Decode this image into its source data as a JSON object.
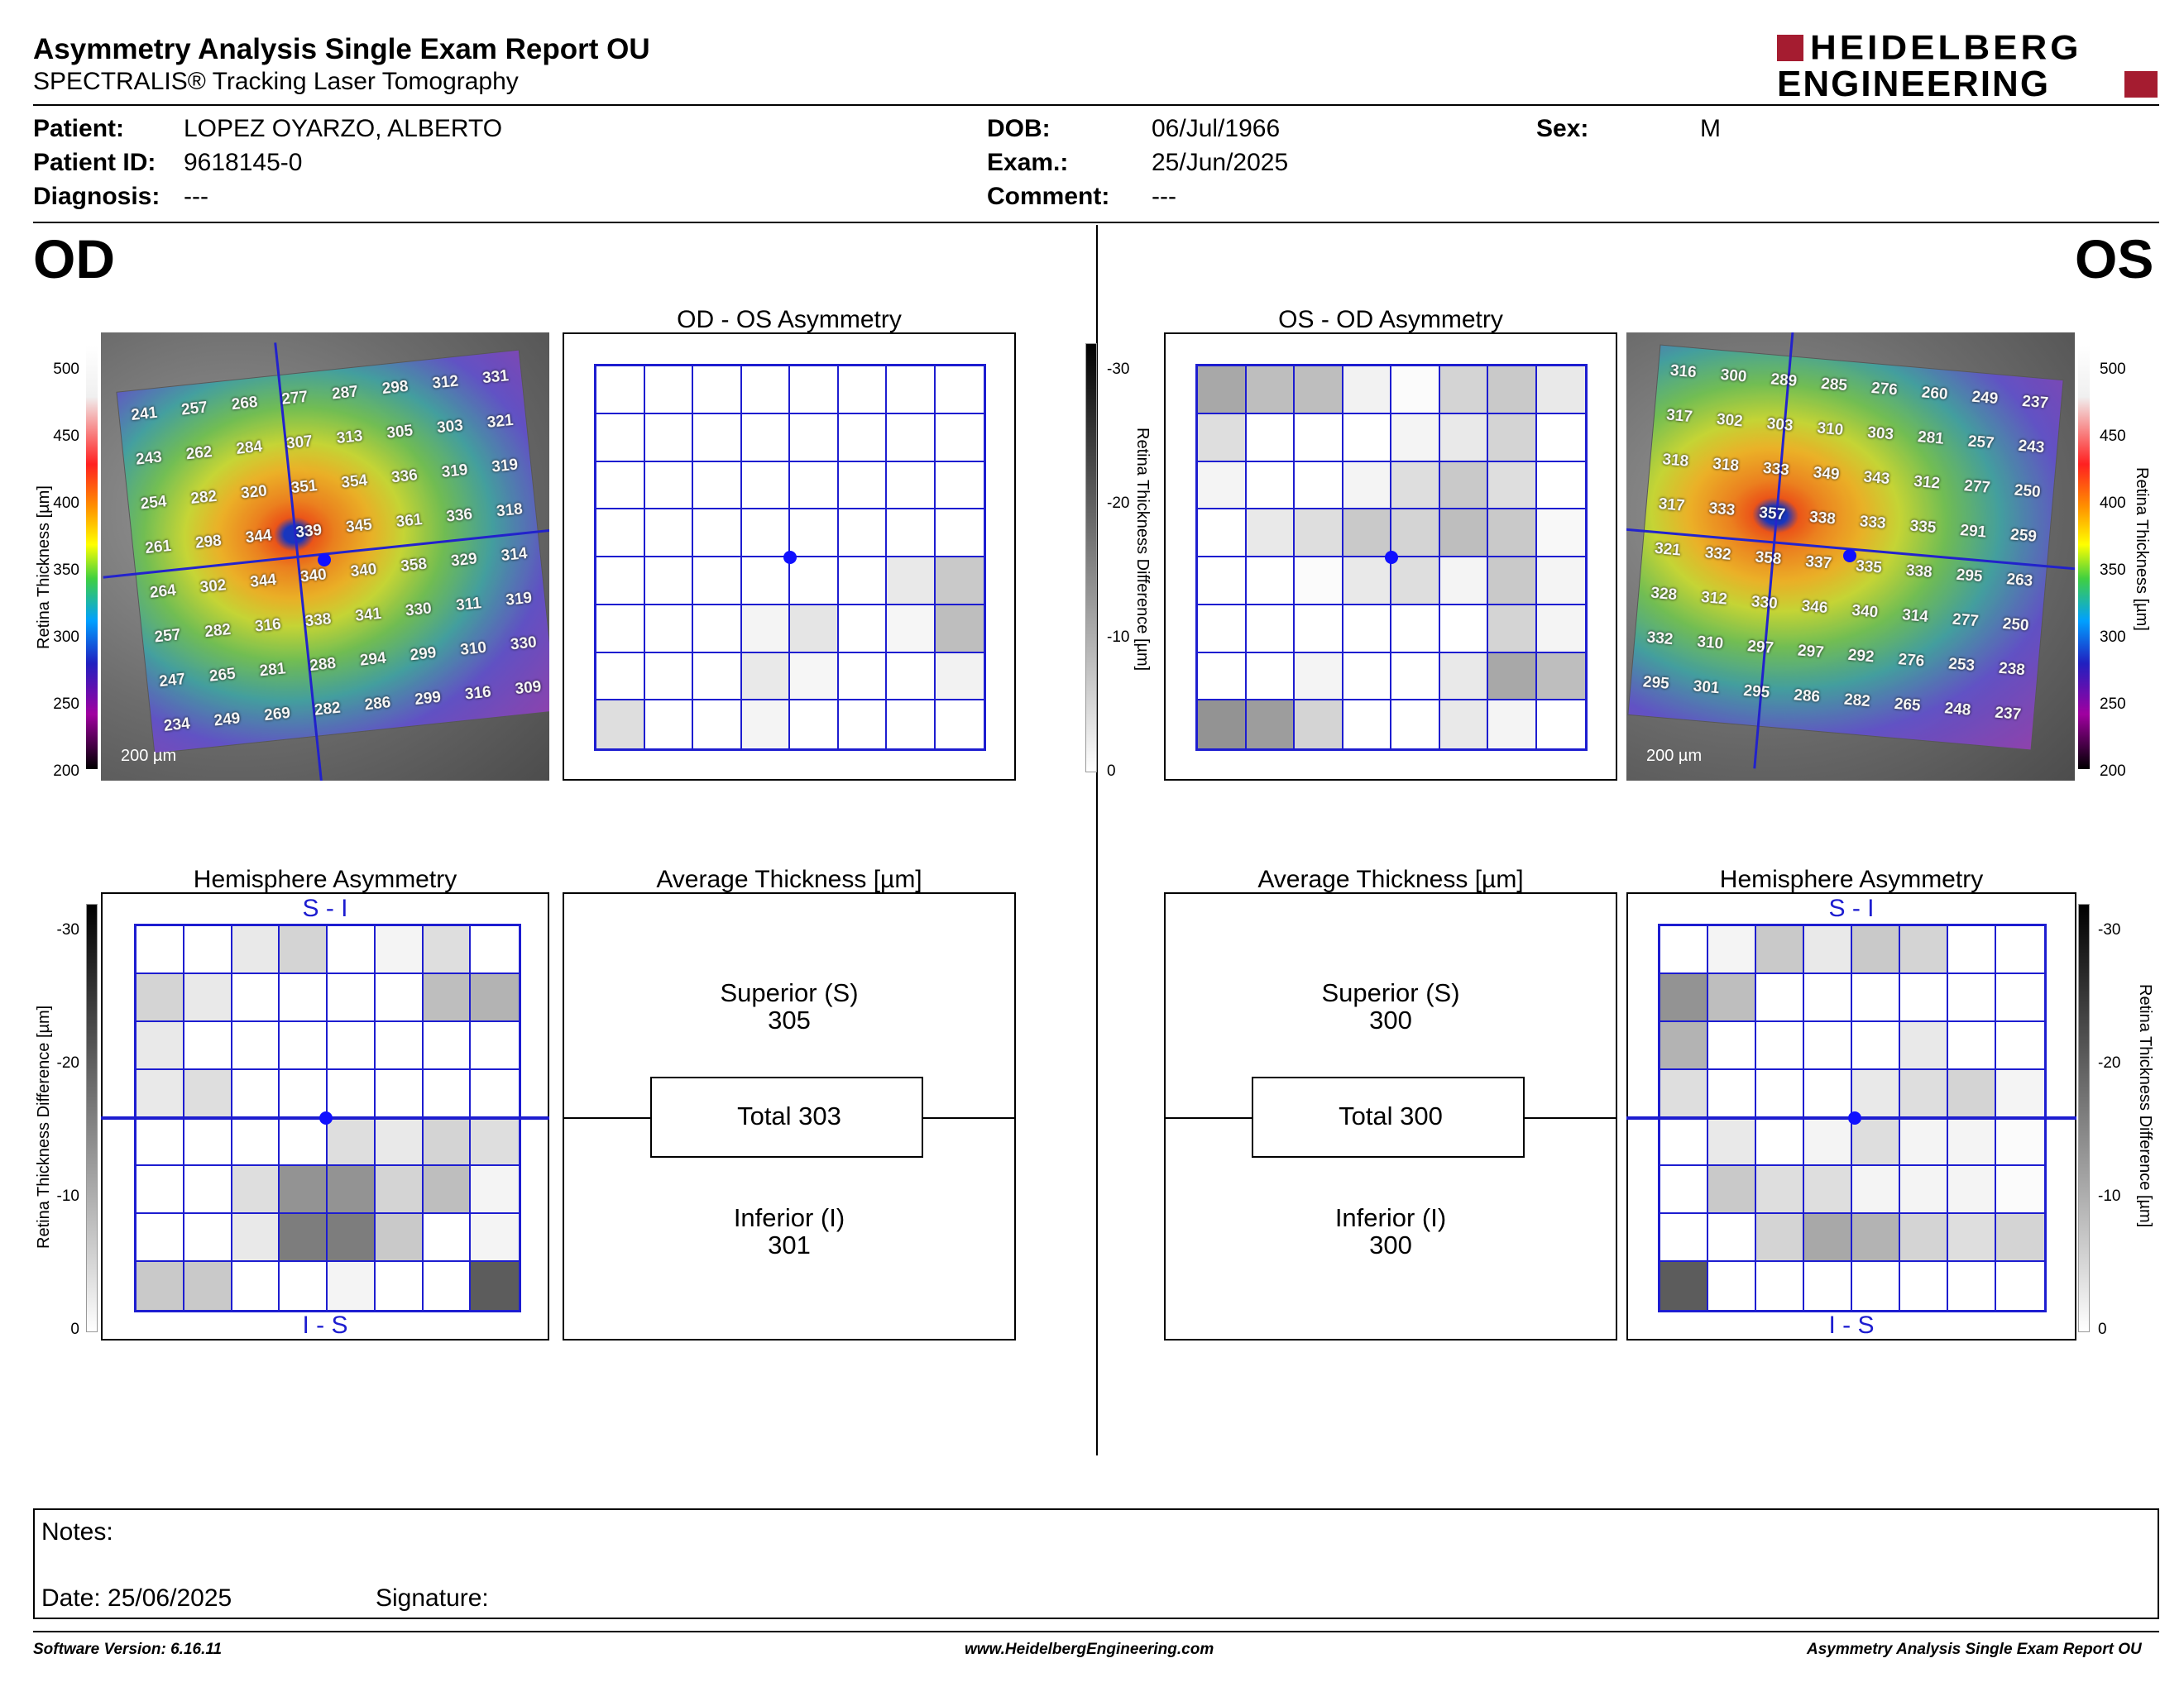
{
  "header": {
    "title": "Asymmetry Analysis Single Exam Report OU",
    "subtitle": "SPECTRALIS® Tracking Laser Tomography",
    "logo_line1": "HEIDELBERG",
    "logo_line2": "ENGINEERING"
  },
  "patient": {
    "name_label": "Patient:",
    "name": "LOPEZ OYARZO, ALBERTO",
    "id_label": "Patient ID:",
    "id": "9618145-0",
    "diagnosis_label": "Diagnosis:",
    "diagnosis": "---",
    "dob_label": "DOB:",
    "dob": "06/Jul/1966",
    "exam_label": "Exam.:",
    "exam": "25/Jun/2025",
    "comment_label": "Comment:",
    "comment": "---",
    "sex_label": "Sex:",
    "sex": "M"
  },
  "eyes": {
    "od": "OD",
    "os": "OS"
  },
  "panels": {
    "od_os_title": "OD - OS Asymmetry",
    "os_od_title": "OS - OD Asymmetry",
    "hemi_title": "Hemisphere Asymmetry",
    "avg_title": "Average Thickness [µm]",
    "si": "S - I",
    "is": "I - S"
  },
  "thickness_axis": {
    "label": "Retina  Thickness [µm]",
    "ticks": [
      "500",
      "450",
      "400",
      "350",
      "300",
      "250",
      "200"
    ]
  },
  "diff_axis": {
    "label": "Retina Thickness Difference [µm]",
    "ticks": [
      "-30",
      "-20",
      "-10",
      "0"
    ]
  },
  "scale_label": "200 µm",
  "od_map": [
    [
      241,
      257,
      268,
      277,
      287,
      298,
      312,
      331
    ],
    [
      243,
      262,
      284,
      307,
      313,
      305,
      303,
      321
    ],
    [
      254,
      282,
      320,
      351,
      354,
      336,
      319,
      319
    ],
    [
      261,
      298,
      344,
      339,
      345,
      361,
      336,
      318
    ],
    [
      264,
      302,
      344,
      340,
      340,
      358,
      329,
      314
    ],
    [
      257,
      282,
      316,
      338,
      341,
      330,
      311,
      319
    ],
    [
      247,
      265,
      281,
      288,
      294,
      299,
      310,
      330
    ],
    [
      234,
      249,
      269,
      282,
      286,
      299,
      316,
      309
    ]
  ],
  "os_map": [
    [
      316,
      300,
      289,
      285,
      276,
      260,
      249,
      237
    ],
    [
      317,
      302,
      303,
      310,
      303,
      281,
      257,
      243
    ],
    [
      318,
      318,
      333,
      349,
      343,
      312,
      277,
      250
    ],
    [
      317,
      333,
      357,
      338,
      333,
      335,
      291,
      259
    ],
    [
      321,
      332,
      358,
      337,
      335,
      338,
      295,
      263
    ],
    [
      328,
      312,
      330,
      346,
      340,
      314,
      277,
      250
    ],
    [
      332,
      310,
      297,
      297,
      292,
      276,
      253,
      238
    ],
    [
      295,
      301,
      295,
      286,
      282,
      265,
      248,
      237
    ]
  ],
  "od_os_asym": [
    [
      0,
      0,
      0,
      0,
      0,
      0,
      0,
      0
    ],
    [
      0,
      0,
      0,
      0,
      0,
      0,
      0,
      0
    ],
    [
      0,
      0,
      0,
      0,
      0,
      0,
      0,
      0
    ],
    [
      0,
      0,
      0,
      0,
      0,
      0,
      0,
      0
    ],
    [
      0,
      0,
      0,
      0,
      0,
      0,
      0.1,
      0.25
    ],
    [
      0,
      0,
      0,
      0.05,
      0.12,
      0,
      0.04,
      0.3
    ],
    [
      0,
      0,
      0,
      0.1,
      0.04,
      0,
      0,
      0.06
    ],
    [
      0.15,
      0,
      0,
      0.05,
      0,
      0,
      0,
      0
    ]
  ],
  "os_od_asym": [
    [
      0.4,
      0.3,
      0.3,
      0.06,
      0.02,
      0.2,
      0.25,
      0.1
    ],
    [
      0.15,
      0,
      0,
      0,
      0.05,
      0.1,
      0.2,
      0
    ],
    [
      0.05,
      0,
      0,
      0.05,
      0.15,
      0.25,
      0.15,
      0
    ],
    [
      0,
      0.1,
      0.15,
      0.25,
      0.2,
      0.3,
      0.25,
      0.03
    ],
    [
      0,
      0,
      0.02,
      0.1,
      0.15,
      0.05,
      0.25,
      0.05
    ],
    [
      0,
      0,
      0,
      0,
      0,
      0,
      0.2,
      0.05
    ],
    [
      0,
      0,
      0.05,
      0,
      0,
      0.1,
      0.4,
      0.3
    ],
    [
      0.5,
      0.45,
      0.2,
      0,
      0,
      0.1,
      0.05,
      0
    ]
  ],
  "od_hemi": [
    [
      0,
      0,
      0.1,
      0.2,
      0,
      0.05,
      0.15,
      0
    ],
    [
      0.2,
      0.1,
      0,
      0,
      0,
      0,
      0.3,
      0.35
    ],
    [
      0.1,
      0,
      0,
      0,
      0,
      0,
      0,
      0
    ],
    [
      0.1,
      0.15,
      0,
      0,
      0,
      0,
      0,
      0
    ],
    [
      0,
      0,
      0,
      0,
      0.15,
      0.1,
      0.2,
      0.15
    ],
    [
      0,
      0,
      0.15,
      0.5,
      0.5,
      0.2,
      0.3,
      0.05
    ],
    [
      0,
      0,
      0.1,
      0.6,
      0.6,
      0.25,
      0,
      0.05
    ],
    [
      0.25,
      0.25,
      0,
      0,
      0.05,
      0,
      0,
      0.75
    ]
  ],
  "os_hemi": [
    [
      0,
      0.05,
      0.25,
      0.1,
      0.25,
      0.2,
      0,
      0
    ],
    [
      0.5,
      0.3,
      0,
      0,
      0,
      0,
      0,
      0
    ],
    [
      0.35,
      0,
      0,
      0,
      0,
      0.1,
      0,
      0
    ],
    [
      0.15,
      0,
      0,
      0,
      0.1,
      0.15,
      0.2,
      0.05
    ],
    [
      0,
      0.1,
      0,
      0.05,
      0.15,
      0.05,
      0.05,
      0.02
    ],
    [
      0,
      0.25,
      0.15,
      0.15,
      0.05,
      0.05,
      0.05,
      0.02
    ],
    [
      0,
      0,
      0.2,
      0.4,
      0.35,
      0.2,
      0.15,
      0.2
    ],
    [
      0.75,
      0,
      0,
      0,
      0,
      0,
      0,
      0
    ]
  ],
  "od_avg": {
    "superior_label": "Superior (S)",
    "superior": "305",
    "total": "Total 303",
    "inferior_label": "Inferior (I)",
    "inferior": "301"
  },
  "os_avg": {
    "superior_label": "Superior (S)",
    "superior": "300",
    "total": "Total 300",
    "inferior_label": "Inferior (I)",
    "inferior": "300"
  },
  "notes": {
    "label": "Notes:",
    "date": "Date: 25/06/2025",
    "signature": "Signature:"
  },
  "footer": {
    "version": "Software Version: 6.16.11",
    "url": "www.HeidelbergEngineering.com",
    "report": "Asymmetry Analysis Single Exam Report OU"
  },
  "colors": {
    "grid": "#1d1dd0",
    "logo_red": "#a51c30"
  }
}
